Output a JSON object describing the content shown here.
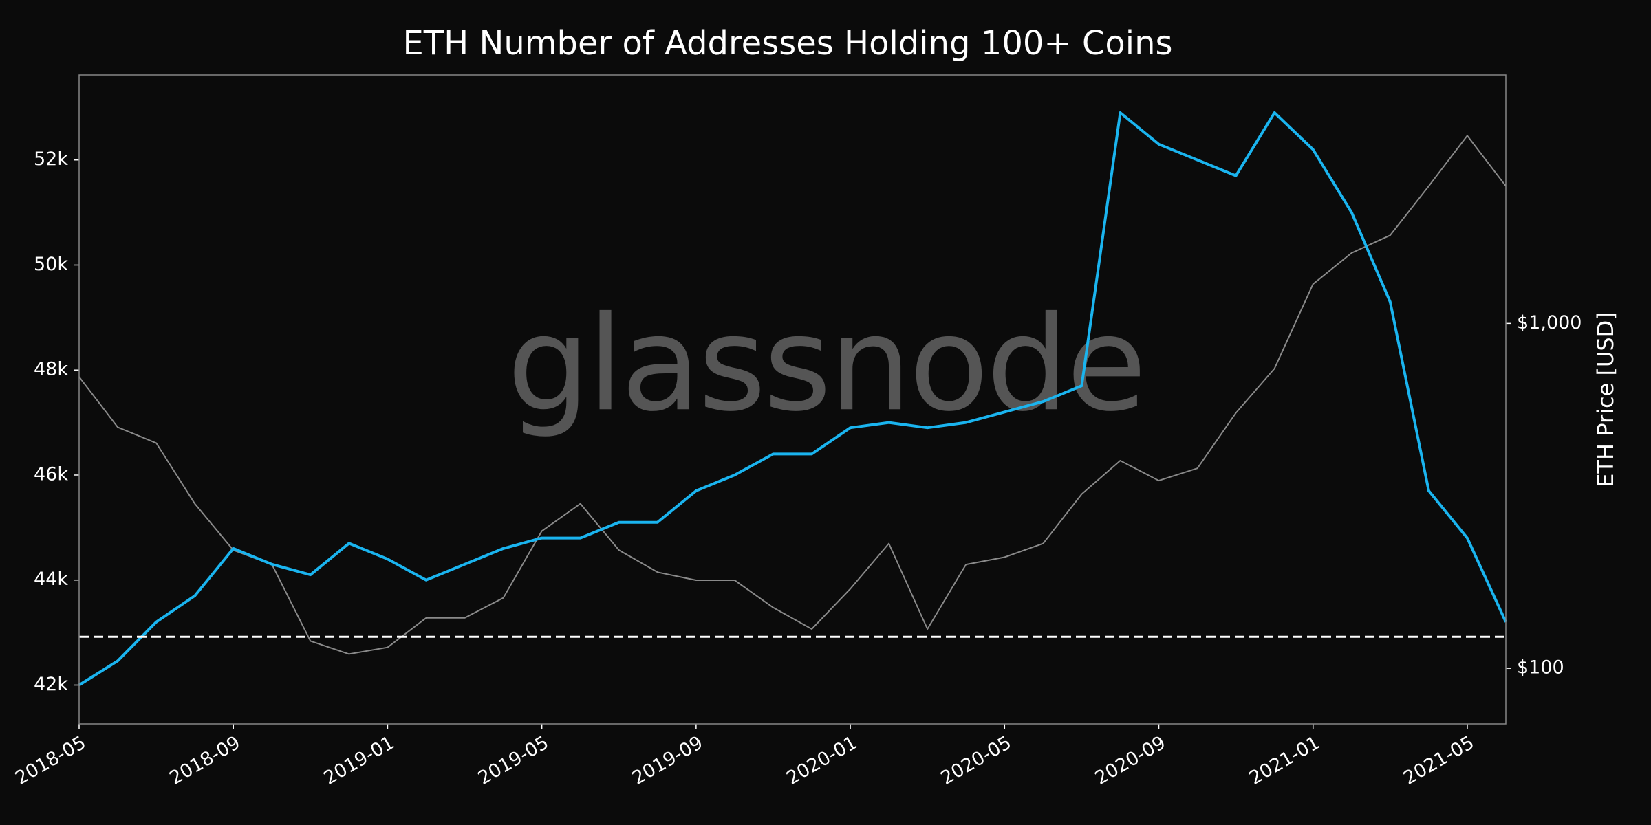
{
  "chart_data": {
    "type": "line",
    "title": "ETH Number of Addresses Holding 100+ Coins",
    "watermark": "glassnode",
    "y2label": "ETH Price [USD]",
    "x": [
      "2018-05",
      "2018-06",
      "2018-07",
      "2018-08",
      "2018-09",
      "2018-10",
      "2018-11",
      "2018-12",
      "2019-01",
      "2019-02",
      "2019-03",
      "2019-04",
      "2019-05",
      "2019-06",
      "2019-07",
      "2019-08",
      "2019-09",
      "2019-10",
      "2019-11",
      "2019-12",
      "2020-01",
      "2020-02",
      "2020-03",
      "2020-04",
      "2020-05",
      "2020-06",
      "2020-07",
      "2020-08",
      "2020-09",
      "2020-10",
      "2020-11",
      "2020-12",
      "2021-01",
      "2021-02",
      "2021-03",
      "2021-04",
      "2021-05",
      "2021-06"
    ],
    "series": [
      {
        "name": "Addresses",
        "color": "#1ab4ef",
        "axis": "y",
        "values": [
          42000,
          42460,
          43200,
          43700,
          44600,
          44300,
          44100,
          44700,
          44400,
          44000,
          44300,
          44600,
          44800,
          44800,
          45100,
          45100,
          45700,
          46000,
          46400,
          46400,
          46900,
          47000,
          46900,
          47000,
          47200,
          47400,
          47700,
          52900,
          52300,
          52000,
          51700,
          52900,
          52200,
          51000,
          49300,
          45700,
          44800,
          43200
        ]
      },
      {
        "name": "Price",
        "color": "#8a8a8a",
        "axis": "y2",
        "values": [
          700,
          500,
          450,
          300,
          220,
          200,
          120,
          110,
          115,
          140,
          140,
          160,
          250,
          300,
          220,
          190,
          180,
          180,
          150,
          130,
          170,
          230,
          130,
          200,
          210,
          230,
          320,
          400,
          350,
          380,
          550,
          740,
          1300,
          1600,
          1800,
          2500,
          3500,
          2500
        ]
      }
    ],
    "hline": 42920,
    "hline_color": "#ffffff",
    "xlim": [
      "2018-05",
      "2021-06"
    ],
    "xticks": [
      "2018-05",
      "2018-09",
      "2019-01",
      "2019-05",
      "2019-09",
      "2020-01",
      "2020-05",
      "2020-09",
      "2021-01",
      "2021-05"
    ],
    "ylim": [
      41260,
      53620
    ],
    "yticks": [
      {
        "value": 42000,
        "label": "42k"
      },
      {
        "value": 44000,
        "label": "44k"
      },
      {
        "value": 46000,
        "label": "46k"
      },
      {
        "value": 48000,
        "label": "48k"
      },
      {
        "value": 50000,
        "label": "50k"
      },
      {
        "value": 52000,
        "label": "52k"
      }
    ],
    "y2lim": [
      69,
      5250
    ],
    "y2log": true,
    "y2ticks": [
      {
        "value": 100,
        "label": "$100"
      },
      {
        "value": 1000,
        "label": "$1,000"
      }
    ],
    "grid": false
  }
}
